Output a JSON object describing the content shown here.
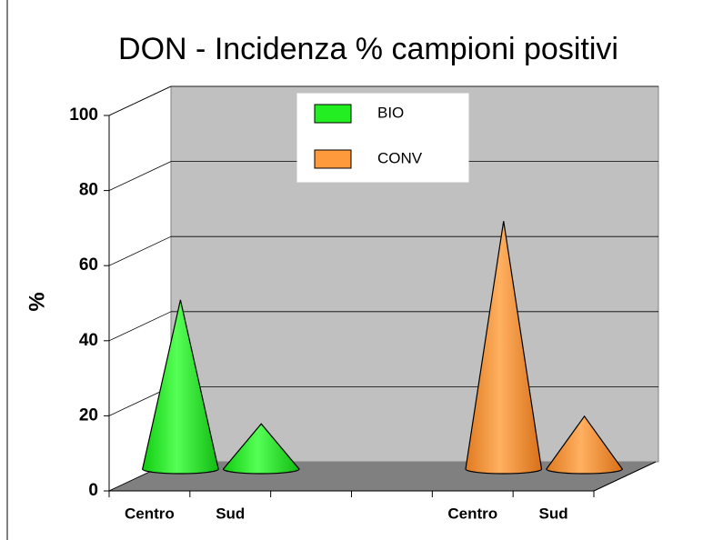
{
  "chart_data": {
    "type": "cone3d",
    "title": "DON - Incidenza % campioni positivi",
    "ylabel": "%",
    "categories": [
      "Centro",
      "Sud",
      null,
      null,
      "Centro",
      "Sud"
    ],
    "series": [
      {
        "name": "BIO",
        "color": "#22ee22",
        "values": [
          47,
          14,
          null,
          null,
          null,
          null
        ]
      },
      {
        "name": "CONV",
        "color": "#ff9a3c",
        "values": [
          null,
          null,
          null,
          null,
          68,
          16
        ]
      }
    ],
    "ylim": [
      0,
      100
    ],
    "yticks": [
      0,
      20,
      40,
      60,
      80,
      100
    ],
    "grid": true,
    "legend": "top"
  }
}
